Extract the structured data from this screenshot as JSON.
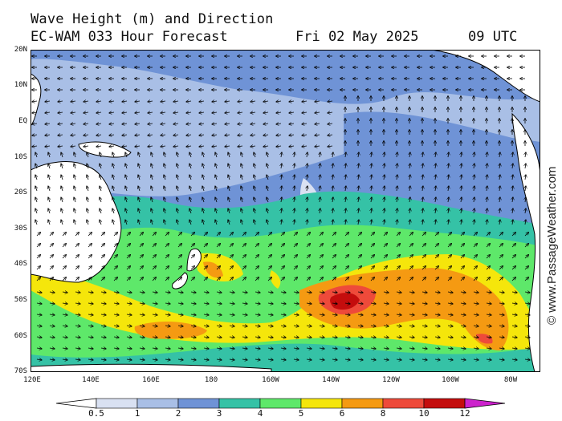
{
  "header": {
    "title": "Wave Height (m) and Direction",
    "subtitle": "EC-WAM 033 Hour Forecast",
    "date": "Fri 02 May 2025",
    "time": "09 UTC"
  },
  "axes": {
    "latitudes": [
      "20N",
      "10N",
      "EQ",
      "10S",
      "20S",
      "30S",
      "40S",
      "50S",
      "60S",
      "70S"
    ],
    "longitudes": [
      "120E",
      "140E",
      "160E",
      "180",
      "160W",
      "140W",
      "120W",
      "100W",
      "80W"
    ]
  },
  "credit": "© www.PassageWeather.com",
  "legend": {
    "labels": [
      "0.5",
      "1",
      "2",
      "3",
      "4",
      "5",
      "6",
      "8",
      "10",
      "12"
    ],
    "colors": [
      "#ffffff",
      "#d9e1f2",
      "#a9bfe6",
      "#6f93d6",
      "#35c2a6",
      "#5ee86a",
      "#f5e60b",
      "#f59a12",
      "#ee4a3a",
      "#c40d0d",
      "#cc22cc"
    ]
  },
  "map": {
    "ocean_base": "#a9bfe6",
    "land": "#ffffff",
    "region": "Pacific Ocean",
    "high_waves_max_m": "10-12"
  }
}
